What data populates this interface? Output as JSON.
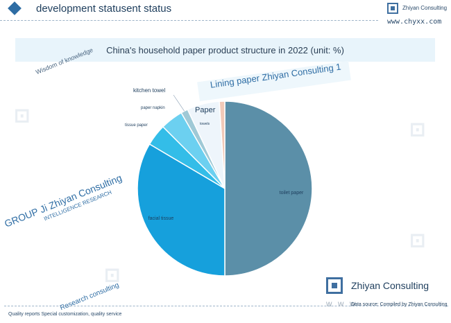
{
  "header": {
    "title": "development statusent status",
    "brand": "Zhiyan Consulting",
    "url": "www.chyxx.com"
  },
  "colors": {
    "accent": "#2e6da4",
    "title_band": "#e8f4fb"
  },
  "overlays": {
    "wisdom": "Wisdom of knowledge",
    "lining": "Lining paper Zhiyan Consulting 1",
    "paper": "Paper",
    "group": "GROUP Ji Zhiyan Consulting",
    "intelligence": "INTELLIGENCE RESEARCH",
    "research": "Research consulting"
  },
  "footer": {
    "left_text": "Quality reports Special customization, quality service",
    "brand": "Zhiyan Consulting",
    "source": "Data source: Compiled by Zhiyan Consulting",
    "www": "W W W"
  },
  "chart_data": {
    "type": "pie",
    "title": "China's household paper product structure in 2022 (unit: %)",
    "slices": [
      {
        "label": "toilet paper",
        "value": 50.0,
        "color": "#5b8fa8"
      },
      {
        "label": "facial tissue",
        "value": 33.5,
        "color": "#16a0dc"
      },
      {
        "label": "tissue paper",
        "value": 4.0,
        "color": "#33bde8"
      },
      {
        "label": "paper napkin",
        "value": 4.2,
        "color": "#6cd0f0"
      },
      {
        "label": "kitchen towel",
        "value": 1.3,
        "color": "#9fc9d6"
      },
      {
        "label": "towels",
        "value": 6.0,
        "color": "#eef5fb"
      },
      {
        "label": "",
        "value": 1.0,
        "color": "#f1c9b8"
      }
    ]
  }
}
